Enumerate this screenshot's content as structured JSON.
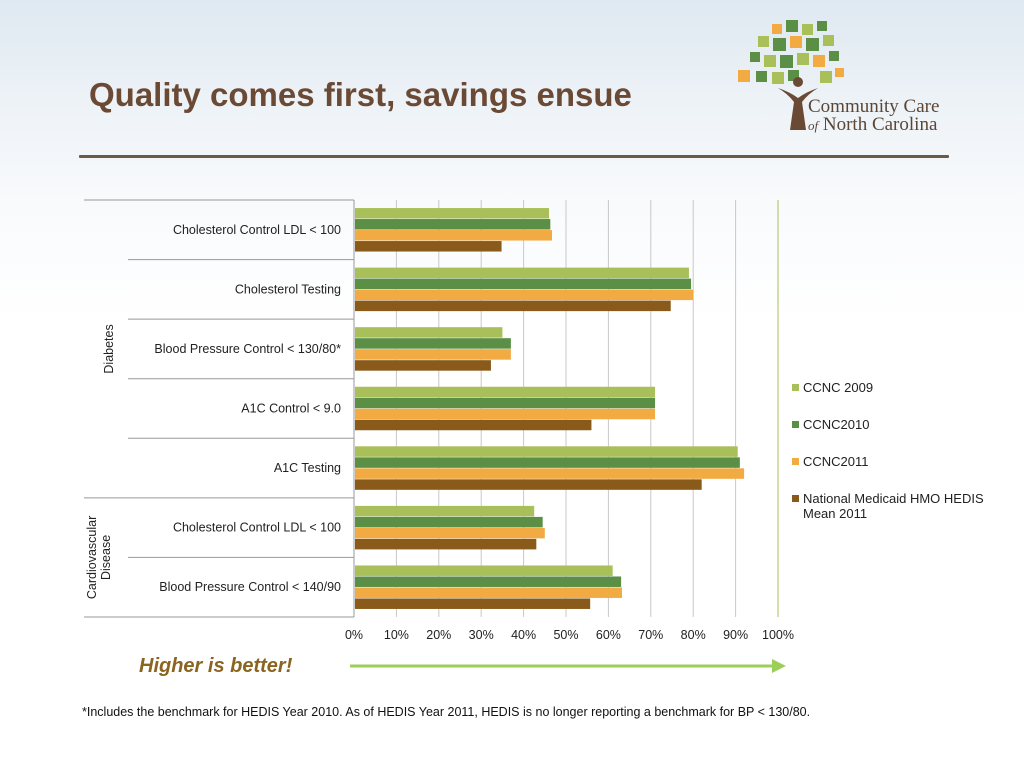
{
  "slide": {
    "title": "Quality comes first, savings ensue",
    "logo": {
      "name": "Community Care of North Carolina",
      "line1": "Community Care",
      "line2_prefix": "of",
      "line2": "North Carolina"
    },
    "note_higher": "Higher is better!",
    "footnote": "*Includes the benchmark for HEDIS Year 2010.  As of HEDIS Year 2011, HEDIS is no longer reporting a benchmark for BP < 130/80."
  },
  "colors": {
    "ccnc2009": "#a9bf5a",
    "ccnc2010": "#5a8f45",
    "ccnc2011": "#f2ab42",
    "national": "#8a5a1a",
    "title": "#6b4a35",
    "arrow": "#9ccf5a"
  },
  "chart_data": {
    "type": "bar",
    "orientation": "horizontal",
    "title": "",
    "xlabel": "",
    "ylabel": "",
    "xlim": [
      0,
      1
    ],
    "x_ticks": [
      "0%",
      "10%",
      "20%",
      "30%",
      "40%",
      "50%",
      "60%",
      "70%",
      "80%",
      "90%",
      "100%"
    ],
    "grid": "vertical",
    "legend_position": "right",
    "groups": [
      {
        "label": "Diabetes",
        "categories": [
          "Cholesterol Control LDL < 100",
          "Cholesterol Testing",
          "Blood Pressure Control < 130/80*",
          "A1C Control < 9.0",
          "A1C Testing"
        ]
      },
      {
        "label": "Cardiovascular Disease",
        "categories": [
          "Cholesterol Control LDL < 100",
          "Blood Pressure Control < 140/90"
        ]
      }
    ],
    "categories": [
      "Cholesterol Control LDL < 100",
      "Cholesterol Testing",
      "Blood Pressure Control < 130/80*",
      "A1C Control < 9.0",
      "A1C Testing",
      "Cholesterol Control LDL < 100",
      "Blood Pressure Control < 140/90"
    ],
    "series": [
      {
        "name": "CCNC 2009",
        "color": "#a9bf5a",
        "values": [
          0.46,
          0.79,
          0.35,
          0.71,
          0.905,
          0.425,
          0.61
        ]
      },
      {
        "name": "CCNC2010",
        "color": "#5a8f45",
        "values": [
          0.463,
          0.795,
          0.37,
          0.71,
          0.91,
          0.445,
          0.63
        ]
      },
      {
        "name": "CCNC2011",
        "color": "#f2ab42",
        "values": [
          0.467,
          0.8,
          0.37,
          0.71,
          0.92,
          0.45,
          0.632
        ]
      },
      {
        "name": "National Medicaid HMO HEDIS Mean 2011",
        "color": "#8a5a1a",
        "values": [
          0.348,
          0.747,
          0.323,
          0.56,
          0.82,
          0.43,
          0.557
        ]
      }
    ]
  }
}
